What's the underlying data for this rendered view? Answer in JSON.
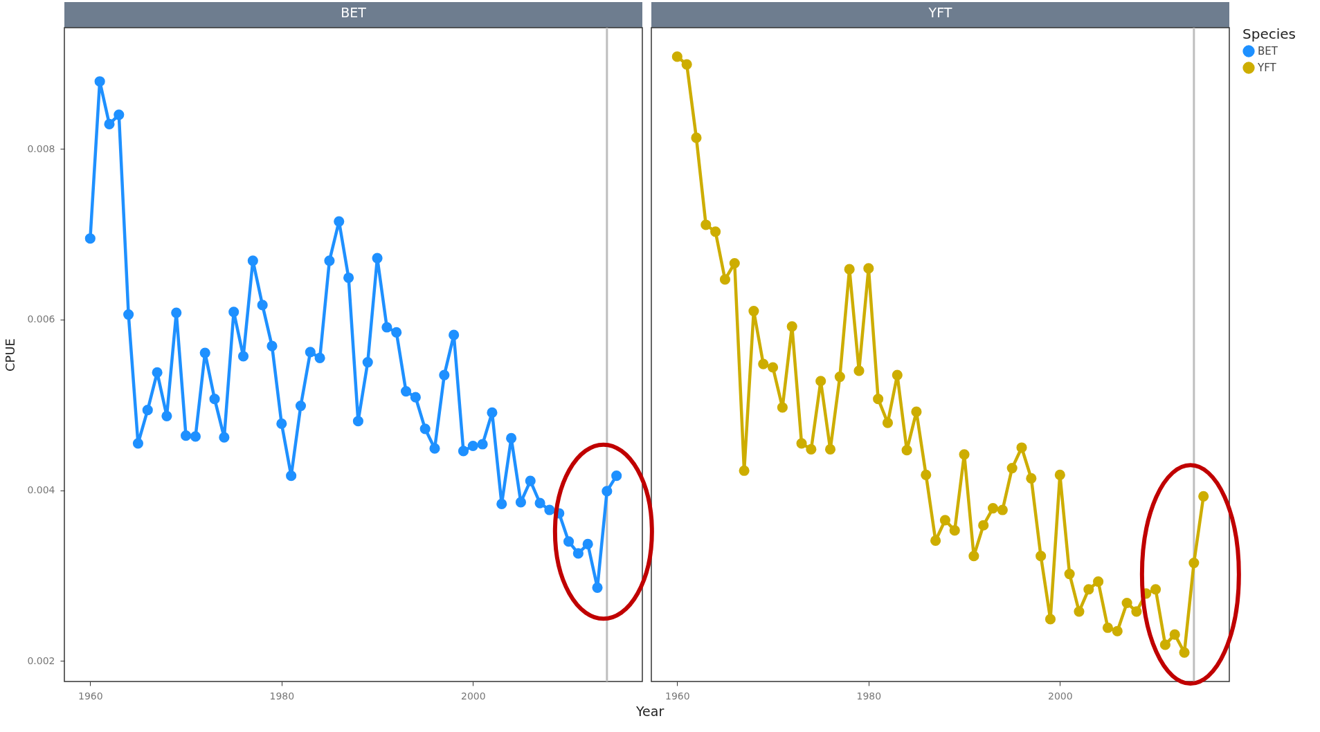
{
  "chart_data": [
    {
      "type": "line",
      "title": "BET",
      "xlabel": "Year",
      "ylabel": "CPUE",
      "xlim": [
        1957.3,
        2017.7
      ],
      "xticks": [
        1960,
        1980,
        2000
      ],
      "ylim": [
        0.00176,
        0.00942
      ],
      "yticks": [
        0.002,
        0.004,
        0.006,
        0.008
      ],
      "grid": false,
      "marker": "circle",
      "line_style": "solid",
      "x": [
        1960,
        1961,
        1962,
        1963,
        1964,
        1965,
        1966,
        1967,
        1968,
        1969,
        1970,
        1971,
        1972,
        1973,
        1974,
        1975,
        1976,
        1977,
        1978,
        1979,
        1980,
        1981,
        1982,
        1983,
        1984,
        1985,
        1986,
        1987,
        1988,
        1989,
        1990,
        1991,
        1992,
        1993,
        1994,
        1995,
        1996,
        1997,
        1998,
        1999,
        2000,
        2001,
        2002,
        2003,
        2004,
        2005,
        2006,
        2007,
        2008,
        2009,
        2010,
        2011,
        2012,
        2013,
        2014,
        2015
      ],
      "series": [
        {
          "name": "BET",
          "color": "#1e90ff",
          "values": [
            0.00695,
            0.00879,
            0.00829,
            0.0084,
            0.00606,
            0.00455,
            0.00494,
            0.00538,
            0.00487,
            0.00608,
            0.00464,
            0.00463,
            0.00561,
            0.00507,
            0.00462,
            0.00609,
            0.00557,
            0.00669,
            0.00617,
            0.00569,
            0.00478,
            0.00417,
            0.00499,
            0.00562,
            0.00555,
            0.00669,
            0.00715,
            0.00649,
            0.00481,
            0.0055,
            0.00672,
            0.00591,
            0.00585,
            0.00516,
            0.00509,
            0.00472,
            0.00449,
            0.00535,
            0.00582,
            0.00446,
            0.00452,
            0.00454,
            0.00491,
            0.00384,
            0.00461,
            0.00386,
            0.00411,
            0.00385,
            0.00377,
            0.00373,
            0.0034,
            0.00326,
            0.00337,
            0.00286,
            0.00399,
            0.00417
          ]
        }
      ],
      "ref_lines": [
        {
          "axis": "x",
          "value": 2014,
          "color": "#bebebe"
        }
      ]
    },
    {
      "type": "line",
      "title": "YFT",
      "legend": "right",
      "legend_title": "Species",
      "tick_labels": "x",
      "xlim": [
        1957.3,
        2017.7
      ],
      "xticks": [
        1960,
        1980,
        2000
      ],
      "ylim": [
        0.00176,
        0.00942
      ],
      "yticks": [
        0.002,
        0.004,
        0.006,
        0.008
      ],
      "grid": false,
      "marker": "circle",
      "line_style": "solid",
      "x": [
        1960,
        1961,
        1962,
        1963,
        1964,
        1965,
        1966,
        1967,
        1968,
        1969,
        1970,
        1971,
        1972,
        1973,
        1974,
        1975,
        1976,
        1977,
        1978,
        1979,
        1980,
        1981,
        1982,
        1983,
        1984,
        1985,
        1986,
        1987,
        1988,
        1989,
        1990,
        1991,
        1992,
        1993,
        1994,
        1995,
        1996,
        1997,
        1998,
        1999,
        2000,
        2001,
        2002,
        2003,
        2004,
        2005,
        2006,
        2007,
        2008,
        2009,
        2010,
        2011,
        2012,
        2013,
        2014,
        2015
      ],
      "series": [
        {
          "name": "YFT",
          "color": "#cdad00",
          "values": [
            0.00908,
            0.00899,
            0.00813,
            0.00711,
            0.00703,
            0.00647,
            0.00666,
            0.00423,
            0.0061,
            0.00548,
            0.00544,
            0.00497,
            0.00592,
            0.00455,
            0.00448,
            0.00528,
            0.00448,
            0.00533,
            0.00659,
            0.0054,
            0.0066,
            0.00507,
            0.00479,
            0.00535,
            0.00447,
            0.00492,
            0.00418,
            0.00341,
            0.00365,
            0.00353,
            0.00442,
            0.00323,
            0.00359,
            0.00379,
            0.00377,
            0.00426,
            0.0045,
            0.00414,
            0.00323,
            0.00249,
            0.00418,
            0.00302,
            0.00258,
            0.00284,
            0.00293,
            0.00239,
            0.00235,
            0.00268,
            0.00258,
            0.00279,
            0.00284,
            0.00219,
            0.00231,
            0.0021,
            0.00315,
            0.00393
          ]
        }
      ],
      "ref_lines": [
        {
          "axis": "x",
          "value": 2014,
          "color": "#bebebe"
        }
      ]
    }
  ]
}
